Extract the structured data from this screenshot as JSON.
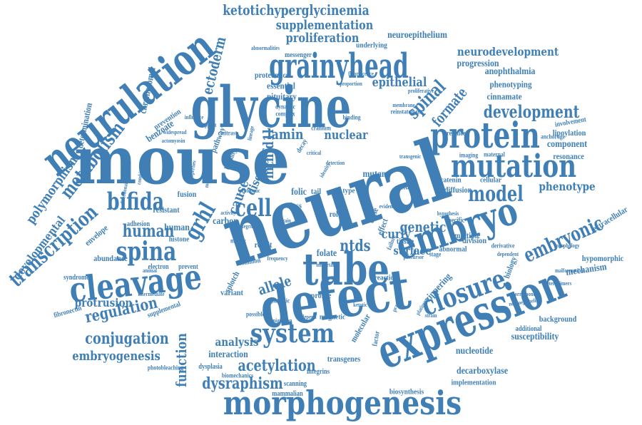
{
  "cloud": {
    "color": "#3f7fb5",
    "words": [
      "mouse",
      "neural",
      "glycine",
      "defect",
      "expression",
      "tube",
      "embryo",
      "neurulation",
      "morphogenesis",
      "protein",
      "mutation",
      "grainyhead",
      "cleavage",
      "system",
      "closure",
      "spina",
      "bifida",
      "cell",
      "model",
      "development",
      "embryonic",
      "human",
      "spinal",
      "transcription",
      "metabolism",
      "polymorphism",
      "ketotichyperglycinemia",
      "supplementation",
      "proliferation",
      "neuroepithelium",
      "neurodevelopment",
      "progression",
      "anophthalmia",
      "phenotyping",
      "cinnamate",
      "epithelial",
      "formate",
      "lamin",
      "nuclear",
      "mutant",
      "phenotype",
      "component",
      "lipoylation",
      "resonance",
      "catenin",
      "cellular",
      "diffusion",
      "genetic",
      "curly",
      "surface",
      "ntds",
      "allele",
      "folate",
      "acetylation",
      "dysraphism",
      "conjugation",
      "embryogenesis",
      "regulation",
      "protrusion",
      "analysis",
      "interaction",
      "function",
      "nucleotide",
      "decarboxylase",
      "susceptibility",
      "background",
      "hypomorphic",
      "extracellular",
      "mechanism",
      "zippering",
      "biology",
      "grhl",
      "carbon",
      "human",
      "histone",
      "envelope",
      "developmental",
      "abundance",
      "fibronectin",
      "syndrome",
      "variant",
      "profile",
      "splotch",
      "transgenes",
      "integrins",
      "scanning",
      "mammalian",
      "implementation",
      "biosynthesis",
      "photobleaching",
      "dysplasia",
      "biomechanics",
      "ectoderm",
      "chromosomal",
      "determination",
      "benzoate",
      "prevention",
      "cause",
      "mthfd1l",
      "disease",
      "essential",
      "pituitary",
      "proteomics",
      "messenger",
      "underlying",
      "abnormalities",
      "fluorescence",
      "proportion",
      "dynamic",
      "complex",
      "contrast",
      "support",
      "influence",
      "actomyosin",
      "pathway",
      "lethality",
      "fusion",
      "resistant",
      "adhesion",
      "electron",
      "prevent",
      "result",
      "tissue",
      "cultured",
      "type",
      "tail",
      "loss",
      "role",
      "folic",
      "cycle",
      "effect",
      "failure",
      "multiple",
      "specific",
      "division",
      "abnormal",
      "derivative",
      "dependent",
      "additional",
      "supplemental",
      "involvement",
      "anchorage",
      "maternal",
      "imaging",
      "presence",
      "reinstatement",
      "membrane",
      "cranium",
      "binding",
      "magnetic",
      "molecular",
      "factor",
      "reaction",
      "possible",
      "depend",
      "glutamic",
      "strain",
      "common",
      "matrix",
      "proteomic",
      "animal",
      "decay",
      "identity",
      "important",
      "stage",
      "frequency",
      "combination",
      "intermediate",
      "malformation",
      "heterodimers",
      "morphology",
      "neuroepithelial",
      "correspond",
      "platinum",
      "practical",
      "ketotic",
      "precursor",
      "migration",
      "widespread",
      "properties",
      "mediated",
      "lineage",
      "critical",
      "transgenic",
      "hypothesis",
      "proliferative",
      "evidence",
      "directionality",
      "brain",
      "activity",
      "integrin",
      "detection"
    ]
  }
}
